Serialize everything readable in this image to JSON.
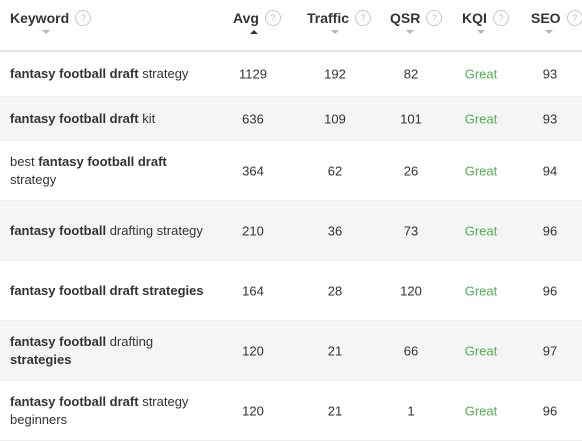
{
  "header": {
    "keyword": "Keyword",
    "avg": "Avg",
    "traffic": "Traffic",
    "qsr": "QSR",
    "kqi": "KQI",
    "seo": "SEO",
    "help_glyph": "?"
  },
  "rows": [
    {
      "kw_parts": [
        {
          "t": "fantasy football draft",
          "b": true
        },
        {
          "t": " strategy",
          "b": false
        }
      ],
      "avg": "1129",
      "traffic": "192",
      "qsr": "82",
      "kqi": "Great",
      "seo": "93"
    },
    {
      "kw_parts": [
        {
          "t": "fantasy football draft",
          "b": true
        },
        {
          "t": " kit",
          "b": false
        }
      ],
      "avg": "636",
      "traffic": "109",
      "qsr": "101",
      "kqi": "Great",
      "seo": "93"
    },
    {
      "kw_parts": [
        {
          "t": "best ",
          "b": false
        },
        {
          "t": "fantasy football draft",
          "b": true
        },
        {
          "t": " strategy",
          "b": false
        }
      ],
      "avg": "364",
      "traffic": "62",
      "qsr": "26",
      "kqi": "Great",
      "seo": "94"
    },
    {
      "kw_parts": [
        {
          "t": "fantasy football",
          "b": true
        },
        {
          "t": " drafting strategy",
          "b": false
        }
      ],
      "avg": "210",
      "traffic": "36",
      "qsr": "73",
      "kqi": "Great",
      "seo": "96"
    },
    {
      "kw_parts": [
        {
          "t": "fantasy football draft strategies",
          "b": true
        }
      ],
      "avg": "164",
      "traffic": "28",
      "qsr": "120",
      "kqi": "Great",
      "seo": "96"
    },
    {
      "kw_parts": [
        {
          "t": "fantasy football",
          "b": true
        },
        {
          "t": " drafting ",
          "b": false
        },
        {
          "t": "strategies",
          "b": true
        }
      ],
      "avg": "120",
      "traffic": "21",
      "qsr": "66",
      "kqi": "Great",
      "seo": "97"
    },
    {
      "kw_parts": [
        {
          "t": "fantasy football draft",
          "b": true
        },
        {
          "t": " strategy beginners",
          "b": false
        }
      ],
      "avg": "120",
      "traffic": "21",
      "qsr": "1",
      "kqi": "Great",
      "seo": "96"
    }
  ],
  "colors": {
    "kqi_great": "#4caf50",
    "alt_row": "#f5f5f5"
  }
}
